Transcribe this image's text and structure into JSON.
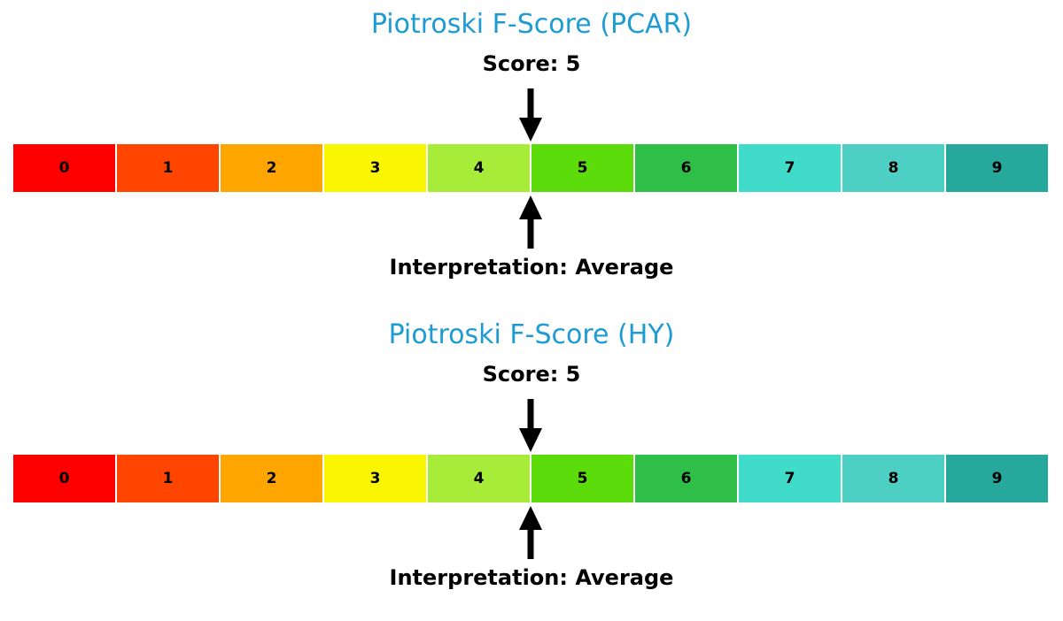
{
  "page": {
    "background": "#ffffff"
  },
  "colors": {
    "title_blue": "#1e9bd2",
    "text_black": "#000000",
    "arrow_black": "#000000",
    "segment_border_white": "#ffffff"
  },
  "scale": {
    "min": 0,
    "max": 10,
    "segments": [
      {
        "label": "0",
        "color": "#ff0000"
      },
      {
        "label": "1",
        "color": "#ff4500"
      },
      {
        "label": "2",
        "color": "#ffa500"
      },
      {
        "label": "3",
        "color": "#faf500"
      },
      {
        "label": "4",
        "color": "#a7ec38"
      },
      {
        "label": "5",
        "color": "#5cdc0a"
      },
      {
        "label": "6",
        "color": "#2fbe47"
      },
      {
        "label": "7",
        "color": "#40dcc9"
      },
      {
        "label": "8",
        "color": "#4dcfc4"
      },
      {
        "label": "9",
        "color": "#27a89c"
      }
    ]
  },
  "charts": [
    {
      "title": "Piotroski F-Score (PCAR)",
      "score": 5,
      "score_label": "Score: 5",
      "interpretation_label": "Interpretation: Average"
    },
    {
      "title": "Piotroski F-Score (HY)",
      "score": 5,
      "score_label": "Score: 5",
      "interpretation_label": "Interpretation: Average"
    }
  ],
  "chart_data": [
    {
      "type": "bar",
      "subtype": "score-scale-gauge",
      "title": "Piotroski F-Score (PCAR)",
      "score": 5,
      "score_annotation": "Score: 5",
      "interpretation_annotation": "Interpretation: Average",
      "categories": [
        "0",
        "1",
        "2",
        "3",
        "4",
        "5",
        "6",
        "7",
        "8",
        "9"
      ],
      "segment_colors": [
        "#ff0000",
        "#ff4500",
        "#ffa500",
        "#faf500",
        "#a7ec38",
        "#5cdc0a",
        "#2fbe47",
        "#40dcc9",
        "#4dcfc4",
        "#27a89c"
      ],
      "xlim": [
        0,
        10
      ],
      "marker_positions": [
        "arrow-down-above-at-5",
        "arrow-up-below-at-5"
      ],
      "grid": false,
      "legend": false
    },
    {
      "type": "bar",
      "subtype": "score-scale-gauge",
      "title": "Piotroski F-Score (HY)",
      "score": 5,
      "score_annotation": "Score: 5",
      "interpretation_annotation": "Interpretation: Average",
      "categories": [
        "0",
        "1",
        "2",
        "3",
        "4",
        "5",
        "6",
        "7",
        "8",
        "9"
      ],
      "segment_colors": [
        "#ff0000",
        "#ff4500",
        "#ffa500",
        "#faf500",
        "#a7ec38",
        "#5cdc0a",
        "#2fbe47",
        "#40dcc9",
        "#4dcfc4",
        "#27a89c"
      ],
      "xlim": [
        0,
        10
      ],
      "marker_positions": [
        "arrow-down-above-at-5",
        "arrow-up-below-at-5"
      ],
      "grid": false,
      "legend": false
    }
  ]
}
